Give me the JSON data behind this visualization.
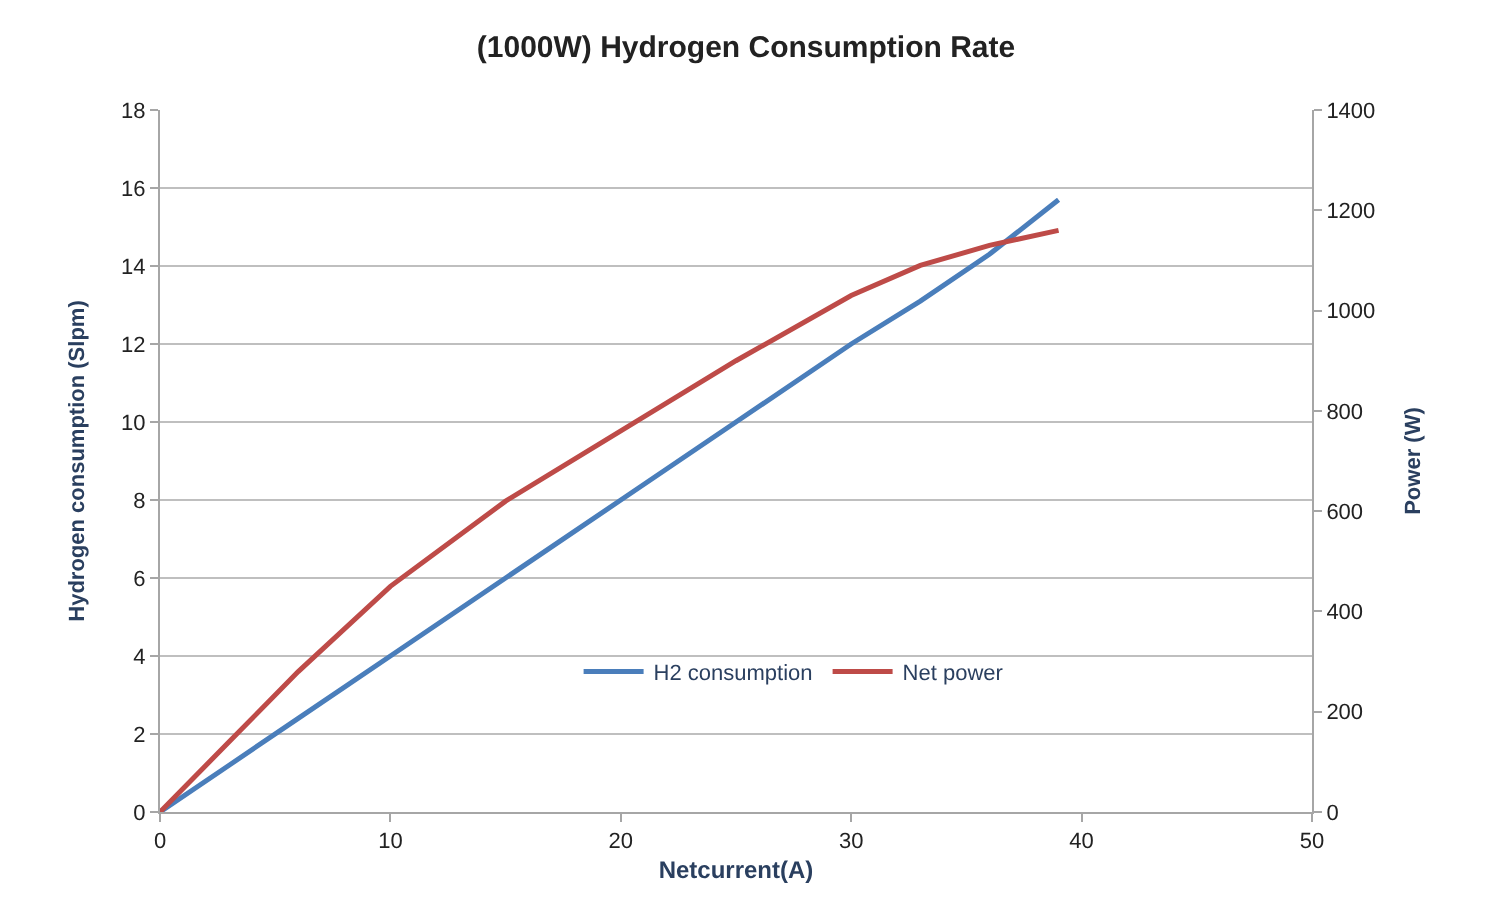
{
  "chart_data": {
    "type": "line",
    "title": "(1000W) Hydrogen Consumption Rate",
    "xlabel": "Netcurrent(A)",
    "ylabel": "Hydrogen consumption (Slpm)",
    "y2label": "Power (W)",
    "x": [
      0,
      3,
      6,
      10,
      15,
      20,
      25,
      30,
      33,
      36,
      39
    ],
    "series": [
      {
        "name": "H2 consumption",
        "color": "#4a7ebb",
        "values": [
          0,
          1.2,
          2.4,
          4.0,
          6.0,
          8.0,
          10.0,
          12.0,
          13.1,
          14.3,
          15.7
        ]
      },
      {
        "name": "Net power",
        "color": "#be4b48",
        "axis": "y2",
        "values": [
          0,
          140,
          280,
          450,
          620,
          760,
          900,
          1030,
          1090,
          1130,
          1160
        ]
      }
    ],
    "xlim": [
      0,
      50
    ],
    "xticks": [
      0,
      10,
      20,
      30,
      40,
      50
    ],
    "ylim": [
      0,
      18
    ],
    "yticks": [
      0,
      2,
      4,
      6,
      8,
      10,
      12,
      14,
      16,
      18
    ],
    "y2lim": [
      0,
      1400
    ],
    "y2ticks": [
      0,
      200,
      400,
      600,
      800,
      1000,
      1200,
      1400
    ],
    "grid": "y",
    "legend": "bottom",
    "marker": "none",
    "line_style": "solid"
  }
}
